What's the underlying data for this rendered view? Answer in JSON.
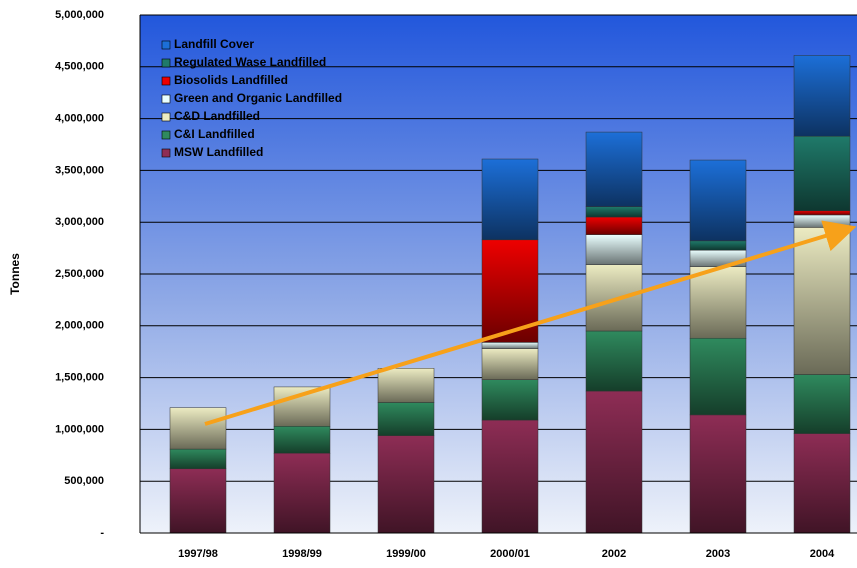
{
  "chart_data": {
    "type": "stacked_bar",
    "y_label": "Tonnes",
    "categories": [
      "1997/98",
      "1998/99",
      "1999/00",
      "2000/01",
      "2002",
      "2003",
      "2004"
    ],
    "series": [
      {
        "name": "MSW Landfilled",
        "color": "#8e2d55",
        "values": [
          620000,
          770000,
          940000,
          1090000,
          1370000,
          1140000,
          960000
        ]
      },
      {
        "name": "C&I Landfilled",
        "color": "#2f8a5e",
        "values": [
          190000,
          260000,
          320000,
          390000,
          580000,
          740000,
          570000
        ]
      },
      {
        "name": "C&D Landfilled",
        "color": "#ecebc2",
        "values": [
          400000,
          380000,
          330000,
          300000,
          640000,
          690000,
          1420000
        ]
      },
      {
        "name": "Green and Organic Landfilled",
        "color": "#eaffff",
        "values": [
          0,
          0,
          0,
          60000,
          290000,
          160000,
          120000
        ]
      },
      {
        "name": "Biosolids Landfilled",
        "color": "#ee0000",
        "values": [
          0,
          0,
          0,
          990000,
          170000,
          0,
          40000
        ]
      },
      {
        "name": "Regulated Wase Landfilled",
        "color": "#1f7a6a",
        "values": [
          0,
          0,
          0,
          0,
          100000,
          90000,
          720000
        ]
      },
      {
        "name": "Landfill Cover",
        "color": "#1c6fd8",
        "values": [
          0,
          0,
          0,
          780000,
          720000,
          780000,
          780000
        ]
      }
    ],
    "ylim": [
      0,
      5000000
    ],
    "yticks": [
      {
        "value": 0,
        "label": "-"
      },
      {
        "value": 500000,
        "label": "500,000"
      },
      {
        "value": 1000000,
        "label": "1,000,000"
      },
      {
        "value": 1500000,
        "label": "1,500,000"
      },
      {
        "value": 2000000,
        "label": "2,000,000"
      },
      {
        "value": 2500000,
        "label": "2,500,000"
      },
      {
        "value": 3000000,
        "label": "3,000,000"
      },
      {
        "value": 3500000,
        "label": "3,500,000"
      },
      {
        "value": 4000000,
        "label": "4,000,000"
      },
      {
        "value": 4500000,
        "label": "4,500,000"
      },
      {
        "value": 5000000,
        "label": "5,000,000"
      }
    ],
    "grid": true,
    "legend": "top-left"
  }
}
